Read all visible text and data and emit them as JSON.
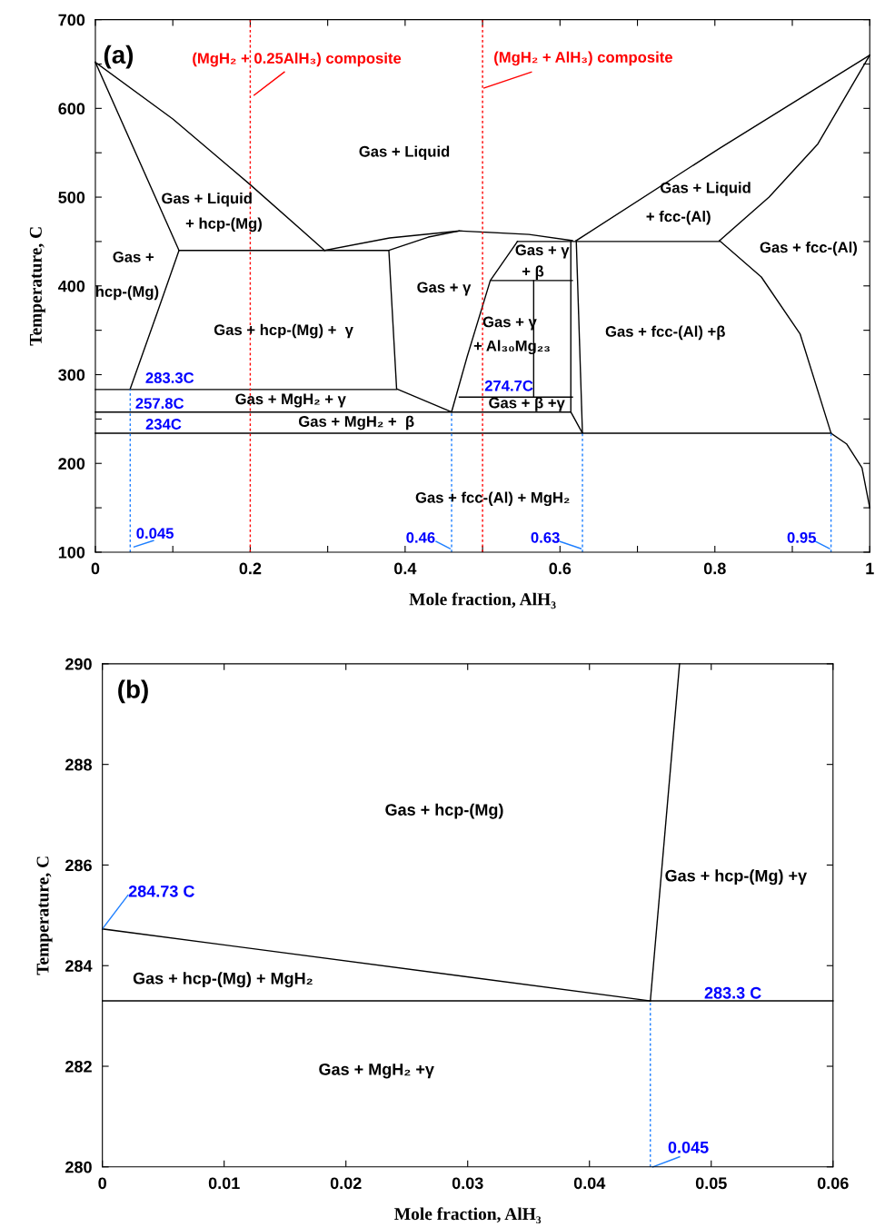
{
  "chart_data": [
    {
      "type": "line",
      "xlabel": "Mole fraction, AlH₃",
      "ylabel": "Temperature, C",
      "xlim": [
        0,
        1
      ],
      "ylim": [
        100,
        700
      ],
      "xticks": [
        0,
        {
          "value": 0.1,
          "label": null
        },
        0.2,
        {
          "value": 0.3,
          "label": null
        },
        0.4,
        {
          "value": 0.5,
          "label": null
        },
        0.6,
        {
          "value": 0.7,
          "label": null
        },
        0.8,
        {
          "value": 0.9,
          "label": null
        },
        1
      ],
      "yticks": [
        100,
        {
          "value": 150,
          "label": null
        },
        200,
        {
          "value": 250,
          "label": null
        },
        300,
        {
          "value": 350,
          "label": null
        },
        400,
        {
          "value": 450,
          "label": null
        },
        500,
        {
          "value": 550,
          "label": null
        },
        600,
        {
          "value": 650,
          "label": null
        },
        700
      ],
      "grid": false,
      "legend": false,
      "series": [
        {
          "color": "#000000",
          "x": [
            0,
            0.1,
            0.2,
            0.296
          ],
          "values": [
            652,
            588,
            514,
            440
          ]
        },
        {
          "color": "#000000",
          "x": [
            0,
            0.108,
            0.08,
            0.045
          ],
          "values": [
            652,
            440,
            370,
            284
          ]
        },
        {
          "color": "#000000",
          "x": [
            0.108,
            0.379,
            0.43,
            0.47
          ],
          "values": [
            440,
            440,
            455,
            462
          ]
        },
        {
          "color": "#000000",
          "x": [
            0.296,
            0.38,
            0.47,
            0.56,
            0.616
          ],
          "values": [
            440,
            454,
            462,
            458,
            451
          ]
        },
        {
          "color": "#000000",
          "x": [
            0.379,
            0.389,
            0.46
          ],
          "values": [
            440,
            284,
            258
          ]
        },
        {
          "color": "#000000",
          "x": [
            0,
            0.389
          ],
          "values": [
            283.3,
            283.3
          ]
        },
        {
          "color": "#000000",
          "x": [
            0,
            0.614
          ],
          "values": [
            257.8,
            257.8
          ]
        },
        {
          "color": "#000000",
          "x": [
            0,
            0.95
          ],
          "values": [
            234,
            234
          ]
        },
        {
          "color": "#000000",
          "x": [
            0.95,
            0.97,
            0.99,
            1
          ],
          "values": [
            234,
            222,
            195,
            150
          ]
        },
        {
          "color": "#000000",
          "x": [
            0.46,
            0.48,
            0.51,
            0.545
          ],
          "values": [
            258,
            320,
            406,
            450
          ]
        },
        {
          "color": "#000000",
          "x": [
            0.545,
            0.806
          ],
          "values": [
            450,
            450
          ]
        },
        {
          "color": "#000000",
          "x": [
            0.51,
            0.616
          ],
          "values": [
            406,
            406
          ]
        },
        {
          "color": "#000000",
          "x": [
            0.566,
            0.566
          ],
          "values": [
            406,
            275
          ]
        },
        {
          "color": "#000000",
          "x": [
            0.47,
            0.616
          ],
          "values": [
            274.7,
            274.7
          ]
        },
        {
          "color": "#000000",
          "x": [
            0.614,
            0.614,
            0.629
          ],
          "values": [
            450,
            258,
            234
          ]
        },
        {
          "color": "#000000",
          "x": [
            0.621,
            0.629
          ],
          "values": [
            451,
            234
          ]
        },
        {
          "color": "#000000",
          "x": [
            0.621,
            0.806,
            1
          ],
          "values": [
            451,
            555,
            660
          ]
        },
        {
          "color": "#000000",
          "x": [
            0.806,
            0.87,
            0.933,
            1
          ],
          "values": [
            451,
            500,
            560,
            660
          ]
        },
        {
          "color": "#000000",
          "x": [
            0.806,
            0.86,
            0.91,
            0.95
          ],
          "values": [
            451,
            410,
            346,
            234
          ]
        },
        {
          "color": "#ff0000",
          "line_style": "dashed",
          "x": [
            0.2,
            0.2
          ],
          "values": [
            100,
            700
          ]
        },
        {
          "color": "#ff0000",
          "line_style": "dashed",
          "x": [
            0.5,
            0.5
          ],
          "values": [
            100,
            700
          ]
        },
        {
          "color": "#ff0000",
          "x": [
            0.205,
            0.244
          ],
          "values": [
            615,
            641
          ]
        },
        {
          "color": "#ff0000",
          "x": [
            0.502,
            0.563
          ],
          "values": [
            623,
            641
          ]
        },
        {
          "color": "#1e7fff",
          "line_style": "dashed",
          "x": [
            0.045,
            0.045
          ],
          "values": [
            100,
            283.3
          ]
        },
        {
          "color": "#1e7fff",
          "line_style": "dashed",
          "x": [
            0.46,
            0.46
          ],
          "values": [
            100,
            258
          ]
        },
        {
          "color": "#1e7fff",
          "line_style": "dashed",
          "x": [
            0.629,
            0.629
          ],
          "values": [
            100,
            234
          ]
        },
        {
          "color": "#1e7fff",
          "line_style": "dashed",
          "x": [
            0.95,
            0.95
          ],
          "values": [
            100,
            234
          ]
        },
        {
          "color": "#1e7fff",
          "x": [
            0.05,
            0.075
          ],
          "values": [
            106,
            113
          ]
        },
        {
          "color": "#1e7fff",
          "x": [
            0.44,
            0.458
          ],
          "values": [
            112,
            104
          ]
        },
        {
          "color": "#1e7fff",
          "x": [
            0.6,
            0.627
          ],
          "values": [
            112,
            104
          ]
        },
        {
          "color": "#1e7fff",
          "x": [
            0.93,
            0.948
          ],
          "values": [
            112,
            104
          ]
        }
      ],
      "annotations": [
        "(a)",
        "(MgH₂ + 0.25AlH₃) composite",
        "(MgH₂ + AlH₃) composite",
        "Gas + Liquid",
        "Gas + Liquid",
        "+ hcp-(Mg)",
        "Gas +",
        "hcp-(Mg)",
        "Gas + hcp-(Mg) +  γ",
        "Gas + γ",
        "Gas + γ",
        "+ β",
        "Gas + γ",
        "+ Al₃₀Mg₂₃",
        "Gas + Liquid",
        "+ fcc-(Al)",
        "Gas + fcc-(Al)",
        "Gas + fcc-(Al) +β",
        "283.3C",
        "257.8C",
        "234C",
        "Gas + MgH₂ + γ",
        "Gas + MgH₂ +  β",
        "274.7C",
        "Gas + β +γ",
        "Gas + fcc-(Al) + MgH₂",
        "0.045",
        "0.46",
        "0.63",
        "0.95"
      ]
    },
    {
      "type": "line",
      "xlabel": "Mole fraction, AlH₃",
      "ylabel": "Temperature, C",
      "xlim": [
        0,
        0.06
      ],
      "ylim": [
        280,
        290
      ],
      "xticks": [
        0,
        0.01,
        0.02,
        0.03,
        0.04,
        0.05,
        0.06
      ],
      "yticks": [
        280,
        282,
        284,
        286,
        288,
        290
      ],
      "grid": false,
      "legend": false,
      "series": [
        {
          "color": "#000000",
          "x": [
            0,
            0.045
          ],
          "values": [
            284.73,
            283.3
          ]
        },
        {
          "color": "#000000",
          "x": [
            0,
            0.06
          ],
          "values": [
            283.3,
            283.3
          ]
        },
        {
          "color": "#000000",
          "x": [
            0.045,
            0.0474
          ],
          "values": [
            283.3,
            290
          ]
        },
        {
          "color": "#1e7fff",
          "line_style": "dashed",
          "x": [
            0.045,
            0.045
          ],
          "values": [
            280,
            283.3
          ]
        },
        {
          "color": "#1e7fff",
          "x": [
            0,
            0.0021
          ],
          "values": [
            284.73,
            285.4
          ]
        },
        {
          "color": "#1e7fff",
          "x": [
            0.0452,
            0.0474
          ],
          "values": [
            280,
            280.2
          ]
        }
      ],
      "annotations": [
        "(b)",
        "Gas + hcp-(Mg)",
        "Gas + hcp-(Mg) +γ",
        "284.73 C",
        "Gas + hcp-(Mg) + MgH₂",
        "283.3 C",
        "Gas + MgH₂ +γ",
        "0.045"
      ]
    }
  ]
}
